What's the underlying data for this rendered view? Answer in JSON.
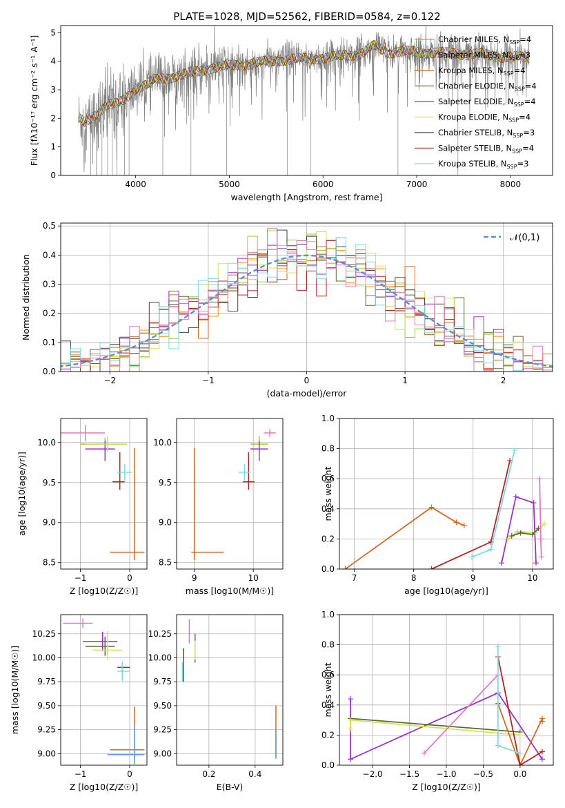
{
  "figure": {
    "title": "PLATE=1028, MJD=52562, FIBERID=0584, z=0.122"
  },
  "colors": {
    "chabrier_miles": "#ff8c00",
    "salpeter_miles": "#9acd32",
    "kroupa_miles": "#d2691e",
    "chabrier_elodie": "#556b2f",
    "salpeter_elodie": "#9932cc",
    "kroupa_elodie": "#d4e157",
    "chabrier_stelib": "#404040",
    "salpeter_stelib": "#b22222",
    "kroupa_stelib": "#7fd8e0",
    "data": "#808080",
    "pink": "#e377c2",
    "blue": "#6495ed",
    "normal": "#5b8fd6",
    "grid": "#b0b0b0"
  },
  "chart_data": [
    {
      "id": "spectrum",
      "type": "line",
      "xlabel": "wavelength [Angstrom, rest frame]",
      "ylabel": "Flux [fλ10⁻¹⁷ erg cm⁻² s⁻¹ A⁻¹]",
      "xlim": [
        3200,
        8450
      ],
      "ylim": [
        0,
        5.25
      ],
      "xticks": [
        4000,
        5000,
        6000,
        7000,
        8000
      ],
      "yticks": [
        0,
        1,
        2,
        3,
        4,
        5
      ],
      "grid": false,
      "legend_position": "upper right",
      "legend": [
        {
          "label": "Chabrier MILES, N_SSP=4",
          "color_key": "chabrier_miles"
        },
        {
          "label": "Salpeter MILES, N_SSP=3",
          "color_key": "salpeter_miles"
        },
        {
          "label": "Kroupa MILES, N_SSP=4",
          "color_key": "kroupa_miles"
        },
        {
          "label": "Chabrier ELODIE, N_SSP=4",
          "color_key": "chabrier_elodie"
        },
        {
          "label": "Salpeter ELODIE, N_SSP=4",
          "color_key": "salpeter_elodie"
        },
        {
          "label": "Kroupa ELODIE, N_SSP=4",
          "color_key": "kroupa_elodie"
        },
        {
          "label": "Chabrier STELIB, N_SSP=3",
          "color_key": "chabrier_stelib"
        },
        {
          "label": "Salpeter STELIB, N_SSP=4",
          "color_key": "salpeter_stelib"
        },
        {
          "label": "Kroupa STELIB, N_SSP=3",
          "color_key": "kroupa_stelib"
        }
      ],
      "model_continuum": {
        "x": [
          3390,
          3450,
          3500,
          3600,
          3700,
          3800,
          3900,
          4000,
          4100,
          4200,
          4400,
          4600,
          4800,
          5000,
          5200,
          5400,
          5600,
          5800,
          6000,
          6200,
          6400,
          6550,
          6700,
          6900,
          7100,
          7300,
          7500,
          7700,
          7900,
          8100,
          8200
        ],
        "y": [
          2.0,
          1.85,
          1.95,
          2.2,
          2.5,
          2.5,
          2.7,
          3.05,
          3.15,
          3.35,
          3.45,
          3.6,
          3.75,
          3.85,
          3.9,
          4.0,
          4.05,
          4.1,
          4.1,
          4.2,
          4.25,
          4.55,
          4.3,
          4.35,
          4.3,
          4.3,
          4.25,
          4.25,
          4.15,
          4.15,
          4.1
        ]
      },
      "data_dropouts": [
        3520,
        3580,
        3640,
        3700,
        3750,
        3800,
        3880,
        3930,
        4290,
        4590,
        4970,
        5620,
        5870,
        6800,
        7440
      ]
    },
    {
      "id": "residuals",
      "type": "histogram",
      "xlabel": "(data-model)/error",
      "ylabel": "Normed distribution",
      "xlim": [
        -2.5,
        2.5
      ],
      "ylim": [
        0,
        0.51
      ],
      "xticks": [
        -2,
        -1,
        0,
        1,
        2
      ],
      "yticks": [
        0.0,
        0.1,
        0.2,
        0.3,
        0.4,
        0.5
      ],
      "grid": true,
      "legend_position": "upper right",
      "legend": [
        {
          "label": "𝒩(0,1)",
          "color_key": "normal"
        }
      ],
      "bin_width": 0.1,
      "reference_curve": "standard normal density",
      "peak_values": [
        0.49,
        0.45,
        0.46,
        0.42
      ]
    },
    {
      "id": "age_vs_Z",
      "type": "errorbar",
      "xlabel": "Z [log10(Z/Z☉)]",
      "ylabel": "age  [log10(age/yr)]",
      "xlim": [
        -1.4,
        0.35
      ],
      "ylim": [
        8.42,
        10.3
      ],
      "xticks": [
        -1,
        0
      ],
      "yticks": [
        8.5,
        9.0,
        9.5,
        10.0
      ],
      "grid": true,
      "points": [
        {
          "x": -0.9,
          "y": 10.12,
          "xerr": [
            0.6,
            0.4
          ],
          "yerr": [
            0.1,
            0.1
          ],
          "color_key": "pink"
        },
        {
          "x": -0.5,
          "y": 9.98,
          "xerr": [
            0.5,
            0.4
          ],
          "yerr": [
            0.12,
            0.08
          ],
          "color_key": "salpeter_miles"
        },
        {
          "x": -0.5,
          "y": 9.92,
          "xerr": [
            0.4,
            0.2
          ],
          "yerr": [
            0.15,
            0.1
          ],
          "color_key": "salpeter_elodie"
        },
        {
          "x": -0.45,
          "y": 9.98,
          "xerr": [
            0.45,
            0.4
          ],
          "yerr": [
            0.1,
            0.1
          ],
          "color_key": "kroupa_elodie"
        },
        {
          "x": -0.2,
          "y": 9.51,
          "xerr": [
            0.15,
            0.1
          ],
          "yerr": [
            0.1,
            0.37
          ],
          "color_key": "salpeter_stelib"
        },
        {
          "x": -0.1,
          "y": 9.63,
          "xerr": [
            0.15,
            0.15
          ],
          "yerr": [
            0.1,
            0.1
          ],
          "color_key": "kroupa_stelib"
        },
        {
          "x": 0.1,
          "y": 8.63,
          "xerr": [
            0.5,
            0.2
          ],
          "yerr": [
            0.1,
            1.3
          ],
          "color_key": "kroupa_miles"
        }
      ]
    },
    {
      "id": "age_vs_mass",
      "type": "errorbar",
      "xlabel": "mass [log10(M/M☉)]",
      "ylabel": "",
      "xlim": [
        8.7,
        10.5
      ],
      "ylim": [
        8.42,
        10.3
      ],
      "xticks": [
        9,
        10
      ],
      "yticks": [
        8.5,
        9.0,
        9.5,
        10.0
      ],
      "grid": true,
      "points": [
        {
          "x": 10.28,
          "y": 10.12,
          "xerr": [
            0.1,
            0.1
          ],
          "yerr": [
            0.05,
            0.05
          ],
          "color_key": "pink"
        },
        {
          "x": 10.1,
          "y": 9.98,
          "xerr": [
            0.15,
            0.15
          ],
          "yerr": [
            0.1,
            0.1
          ],
          "color_key": "salpeter_miles"
        },
        {
          "x": 10.1,
          "y": 9.92,
          "xerr": [
            0.15,
            0.15
          ],
          "yerr": [
            0.15,
            0.1
          ],
          "color_key": "salpeter_elodie"
        },
        {
          "x": 9.92,
          "y": 9.51,
          "xerr": [
            0.1,
            0.1
          ],
          "yerr": [
            0.1,
            0.37
          ],
          "color_key": "salpeter_stelib"
        },
        {
          "x": 9.85,
          "y": 9.63,
          "xerr": [
            0.1,
            0.1
          ],
          "yerr": [
            0.1,
            0.1
          ],
          "color_key": "kroupa_stelib"
        },
        {
          "x": 9.0,
          "y": 8.63,
          "xerr": [
            0.05,
            0.5
          ],
          "yerr": [
            0.1,
            1.3
          ],
          "color_key": "kroupa_miles"
        }
      ]
    },
    {
      "id": "weight_vs_age",
      "type": "line",
      "xlabel": "age  [log10(age/yr)]",
      "ylabel": "mass weight",
      "xlim": [
        6.75,
        10.35
      ],
      "ylim": [
        0,
        1.0
      ],
      "xticks": [
        7,
        8,
        9,
        10
      ],
      "yticks": [
        0.0,
        0.2,
        0.4,
        0.6,
        0.8,
        1.0
      ],
      "grid": true,
      "series": [
        {
          "color_key": "kroupa_miles",
          "x": [
            6.85,
            8.3,
            8.72,
            8.85
          ],
          "y": [
            0.0,
            0.41,
            0.31,
            0.29
          ]
        },
        {
          "color_key": "salpeter_stelib",
          "x": [
            8.3,
            9.3,
            9.62
          ],
          "y": [
            0.0,
            0.18,
            0.72
          ]
        },
        {
          "color_key": "kroupa_stelib",
          "x": [
            8.98,
            9.3,
            9.7
          ],
          "y": [
            0.08,
            0.13,
            0.79
          ]
        },
        {
          "color_key": "salpeter_elodie",
          "x": [
            9.48,
            9.72,
            10.02,
            10.06
          ],
          "y": [
            0.04,
            0.48,
            0.44,
            0.04
          ]
        },
        {
          "color_key": "kroupa_elodie",
          "x": [
            9.6,
            9.75,
            10.05,
            10.2
          ],
          "y": [
            0.2,
            0.25,
            0.24,
            0.3
          ]
        },
        {
          "color_key": "chabrier_elodie",
          "x": [
            9.65,
            9.8,
            10.0,
            10.1
          ],
          "y": [
            0.22,
            0.24,
            0.23,
            0.27
          ]
        },
        {
          "color_key": "pink",
          "x": [
            10.12,
            10.14,
            10.15
          ],
          "y": [
            0.6,
            0.2,
            0.08
          ]
        }
      ]
    },
    {
      "id": "mass_vs_Z",
      "type": "errorbar",
      "xlabel": "Z [log10(Z/Z☉)]",
      "ylabel": "mass [log10(M/M☉)]",
      "xlim": [
        -1.4,
        0.35
      ],
      "ylim": [
        8.88,
        10.45
      ],
      "xticks": [
        -1,
        0
      ],
      "yticks": [
        9.0,
        9.25,
        9.5,
        9.75,
        10.0,
        10.25
      ],
      "grid": true,
      "points": [
        {
          "x": -0.95,
          "y": 10.36,
          "xerr": [
            0.4,
            0.2
          ],
          "yerr": [
            0.05,
            0.05
          ],
          "color_key": "pink"
        },
        {
          "x": -0.55,
          "y": 10.17,
          "xerr": [
            0.4,
            0.3
          ],
          "yerr": [
            0.1,
            0.1
          ],
          "color_key": "salpeter_elodie"
        },
        {
          "x": -0.5,
          "y": 10.12,
          "xerr": [
            0.4,
            0.2
          ],
          "yerr": [
            0.1,
            0.1
          ],
          "color_key": "chabrier_elodie"
        },
        {
          "x": -0.45,
          "y": 10.08,
          "xerr": [
            0.3,
            0.3
          ],
          "yerr": [
            0.1,
            0.2
          ],
          "color_key": "kroupa_elodie"
        },
        {
          "x": -0.15,
          "y": 9.9,
          "xerr": [
            0.1,
            0.15
          ],
          "yerr": [
            0.05,
            0.05
          ],
          "color_key": "salpeter_stelib"
        },
        {
          "x": -0.15,
          "y": 9.86,
          "xerr": [
            0.1,
            0.15
          ],
          "yerr": [
            0.1,
            0.1
          ],
          "color_key": "kroupa_stelib"
        },
        {
          "x": 0.1,
          "y": 9.04,
          "xerr": [
            0.5,
            0.2
          ],
          "yerr": [
            0.1,
            0.45
          ],
          "color_key": "kroupa_miles"
        },
        {
          "x": 0.1,
          "y": 8.99,
          "xerr": [
            0.55,
            0.2
          ],
          "yerr": [
            0.1,
            0.3
          ],
          "color_key": "blue"
        }
      ]
    },
    {
      "id": "mass_vs_EBV",
      "type": "errorbar",
      "xlabel": "E(B-V)",
      "ylabel": "",
      "xlim": [
        0.06,
        0.52
      ],
      "ylim": [
        8.88,
        10.45
      ],
      "xticks": [
        0.2,
        0.4
      ],
      "yticks": [
        9.0,
        9.25,
        9.5,
        9.75,
        10.0,
        10.25
      ],
      "grid": true,
      "points": [
        {
          "x": 0.09,
          "y": 9.9,
          "yerr": [
            0.15,
            0.2
          ],
          "color_key": "salpeter_stelib"
        },
        {
          "x": 0.085,
          "y": 9.85,
          "yerr": [
            0.1,
            0.1
          ],
          "color_key": "kroupa_stelib"
        },
        {
          "x": 0.115,
          "y": 10.25,
          "yerr": [
            0.1,
            0.15
          ],
          "color_key": "pink"
        },
        {
          "x": 0.14,
          "y": 10.1,
          "yerr": [
            0.15,
            0.15
          ],
          "color_key": "salpeter_elodie"
        },
        {
          "x": 0.14,
          "y": 10.08,
          "yerr": [
            0.1,
            0.1
          ],
          "color_key": "kroupa_elodie"
        },
        {
          "x": 0.49,
          "y": 9.2,
          "yerr": [
            0.25,
            0.3
          ],
          "color_key": "kroupa_miles"
        },
        {
          "x": 0.49,
          "y": 9.1,
          "yerr": [
            0.15,
            0.15
          ],
          "color_key": "blue"
        }
      ]
    },
    {
      "id": "weight_vs_Z",
      "type": "line",
      "xlabel": "Z [log10(Z/Z☉)]",
      "ylabel": "mass weight",
      "xlim": [
        -2.45,
        0.45
      ],
      "ylim": [
        0,
        1.0
      ],
      "xticks": [
        -2.0,
        -1.5,
        -1.0,
        -0.5,
        0.0
      ],
      "yticks": [
        0.0,
        0.2,
        0.4,
        0.6,
        0.8,
        1.0
      ],
      "grid": true,
      "series": [
        {
          "color_key": "salpeter_elodie",
          "x": [
            -2.3,
            -2.3,
            -0.3,
            0.3
          ],
          "y": [
            0.44,
            0.04,
            0.48,
            0.04
          ]
        },
        {
          "color_key": "chabrier_elodie",
          "x": [
            -2.3,
            0.0
          ],
          "y": [
            0.31,
            0.22
          ]
        },
        {
          "color_key": "kroupa_elodie",
          "x": [
            -2.3,
            -2.3,
            0.0
          ],
          "y": [
            0.24,
            0.3,
            0.2
          ]
        },
        {
          "color_key": "pink",
          "x": [
            -1.3,
            -0.3
          ],
          "y": [
            0.08,
            0.6
          ]
        },
        {
          "color_key": "kroupa_miles",
          "x": [
            -0.3,
            0.0,
            0.3,
            0.3
          ],
          "y": [
            0.41,
            0.0,
            0.31,
            0.29
          ]
        },
        {
          "color_key": "salpeter_stelib",
          "x": [
            -0.3,
            0.0,
            0.3
          ],
          "y": [
            0.72,
            0.0,
            0.09
          ]
        },
        {
          "color_key": "kroupa_stelib",
          "x": [
            -0.3,
            -0.3,
            0.0
          ],
          "y": [
            0.79,
            0.13,
            0.08
          ]
        }
      ]
    }
  ]
}
